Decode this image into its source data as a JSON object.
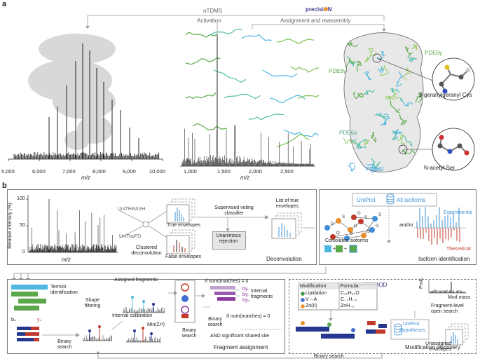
{
  "panel_a": {
    "letter": "a",
    "header": {
      "nTDMS": "nTDMS",
      "activation": "Activation",
      "brand_prefix": "precisi",
      "brand_suffix": "N",
      "assignment": "Assignment and reassembly"
    },
    "spectrum1": {
      "xlabel": "m/z",
      "ticks": [
        "5,000",
        "6,000",
        "7,000",
        "8,000",
        "9,000",
        "10,000"
      ]
    },
    "spectrum2": {
      "xlabel": "m/z",
      "ticks": [
        "1,000",
        "1,500",
        "2,000",
        "2,500"
      ]
    },
    "structure_labels": {
      "pde6g_top": "PDE6γ",
      "pde6g_left": "PDE6γ",
      "pde6a": "PDE6α",
      "pde6b": "PDE6β",
      "sgg": "S-geranylgeranyl Cys",
      "nac": "N-acetyl Ser"
    }
  },
  "panel_b": {
    "letter": "b",
    "spectrum": {
      "ylabel": "Relative intensity (%)",
      "y100": "100",
      "y50": "50",
      "y0": "0",
      "xlabel": "m/z"
    },
    "deconv": {
      "unithrash": "UniTHRASH",
      "unitopfd": "UniTopFD",
      "clustered": "Clustered deconvolution",
      "true_env": "True envelopes",
      "false_env": "False envelopes",
      "supervised": "Supervised voting classifier",
      "unanimous": "Unanimous rejection",
      "list": "List of true envelopes",
      "title": "Deconvolution"
    },
    "isoform": {
      "uniprot": "UniProt",
      "all_isoforms": "All isoforms",
      "andor": "and/or",
      "experimental": "Experimental",
      "theoretical": "Theoretical",
      "coisolated": "Coisolated isoforms",
      "title": "Isoform identification",
      "node_labels": [
        "G",
        "S",
        "G",
        "S",
        "G",
        "Q",
        "P",
        "S",
        "S",
        "G"
      ]
    },
    "fragment": {
      "termini": "Termini identification",
      "bn": "bₙ",
      "yn": "yₙ",
      "binary1": "Binary search",
      "shape": "Shape filtering",
      "assigned": "Assigned fragments",
      "internal_cal": "Internal calibration",
      "min": "Min(Σr²)",
      "binary2": "Binary search",
      "cond1": "If num(matches) = 0",
      "by1": "byᵢ",
      "by2": "byⱼ",
      "by3": "byₖ",
      "internal_frag": "Internal fragments",
      "binary3": "Binary search",
      "cond2": "If num(matches) = 0",
      "and_sig": "AND significant shared site",
      "title": "Fragment assignment"
    },
    "modification": {
      "unimod": "UNIMOD",
      "col_mod": "Modification",
      "col_formula": "Formula",
      "rows": [
        {
          "mod": "Lipidation",
          "formula": "C₂₀H₃₂O",
          "color": "#3a9a44"
        },
        {
          "mod": "V→A",
          "formula": "C₋₂H₋₄",
          "color": "#3f6fd0"
        },
        {
          "mod": "Zn(II)",
          "formula": "ZnH₋₂",
          "color": "#e8902a"
        }
      ],
      "prob": "Prob.",
      "modmass": "Mod mass",
      "uniprot": "UniProt",
      "hypotheses": "Hypotheses",
      "fragment_level": "Fragment-level open search",
      "unassigned": "Unassigned envelopes",
      "title": "Modification discovery"
    },
    "bottom_binary": "Binary search"
  },
  "colors": {
    "blue": "#3f8fd6",
    "cyan": "#4fb8e0",
    "green": "#5aa84a",
    "teal": "#4fbfa8",
    "red": "#c0392b",
    "purple": "#8b3a9e",
    "navy": "#26378f",
    "gray_line": "#888888"
  }
}
